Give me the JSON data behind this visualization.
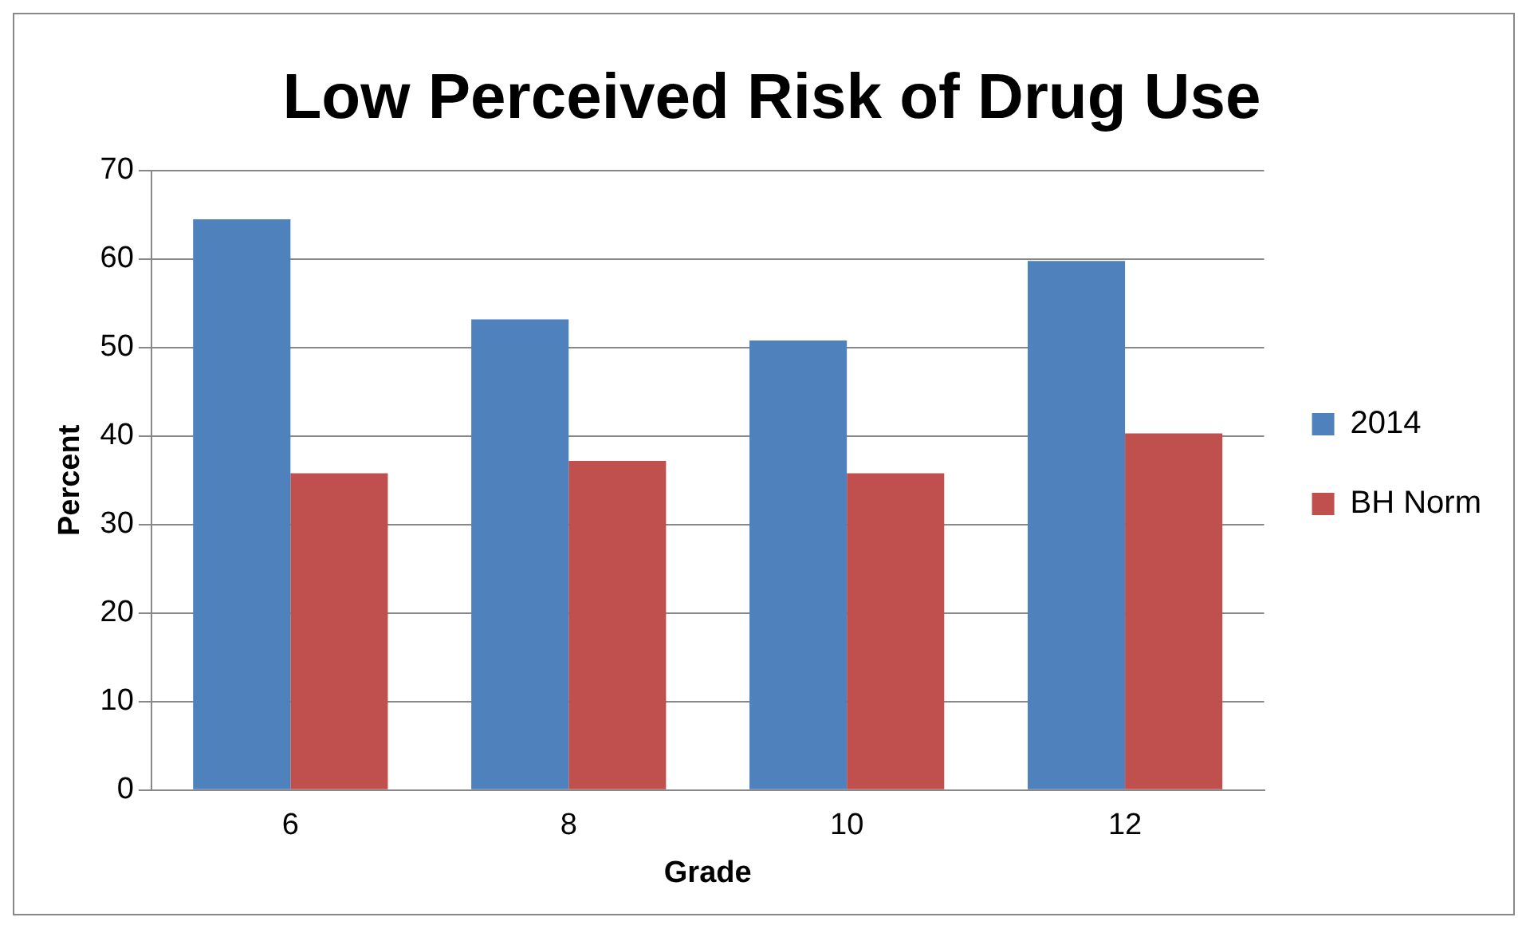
{
  "chart_data": {
    "type": "bar",
    "title": "Low Perceived Risk of Drug Use",
    "xlabel": "Grade",
    "ylabel": "Percent",
    "categories": [
      "6",
      "8",
      "10",
      "12"
    ],
    "series": [
      {
        "name": "2014",
        "color": "#4f81bd",
        "values": [
          64.5,
          53.2,
          50.8,
          59.8
        ]
      },
      {
        "name": "BH Norm",
        "color": "#c0504d",
        "values": [
          35.8,
          37.2,
          35.8,
          40.3
        ]
      }
    ],
    "ylim": [
      0,
      70
    ],
    "yticks": [
      0,
      10,
      20,
      30,
      40,
      50,
      60,
      70
    ],
    "grid": "y",
    "legend": "right"
  }
}
